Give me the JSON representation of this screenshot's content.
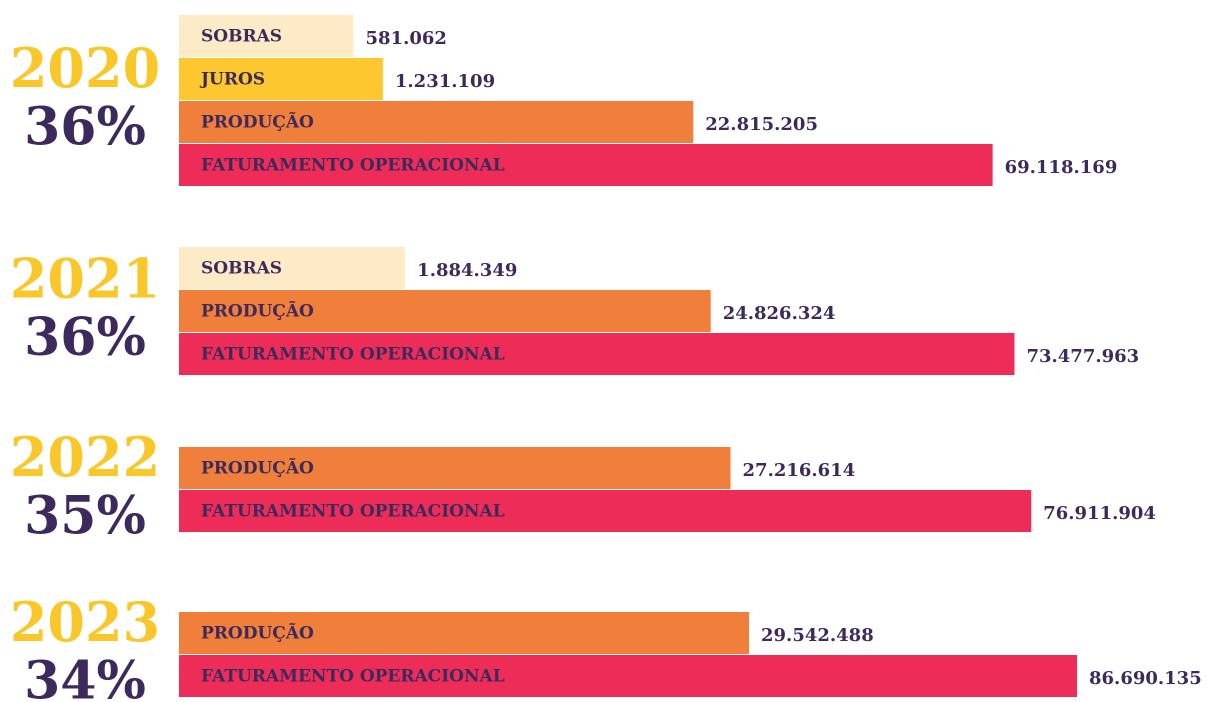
{
  "chart_data": {
    "type": "bar",
    "groups": [
      {
        "year": "2020",
        "share": "36%",
        "bars": [
          {
            "name": "SOBRAS",
            "value": 581062,
            "value_label": "581.062",
            "color": "#fdebc8"
          },
          {
            "name": "JUROS",
            "value": 1231109,
            "value_label": "1.231.109",
            "color": "#fdc82f"
          },
          {
            "name": "PRODUÇÃO",
            "value": 22815205,
            "value_label": "22.815.205",
            "color": "#f07f3c"
          },
          {
            "name": "FATURAMENTO OPERACIONAL",
            "value": 69118169,
            "value_label": "69.118.169",
            "color": "#ee2c58"
          }
        ]
      },
      {
        "year": "2021",
        "share": "36%",
        "bars": [
          {
            "name": "SOBRAS",
            "value": 1884349,
            "value_label": "1.884.349",
            "color": "#fdebc8"
          },
          {
            "name": "PRODUÇÃO",
            "value": 24826324,
            "value_label": "24.826.324",
            "color": "#f07f3c"
          },
          {
            "name": "FATURAMENTO OPERACIONAL",
            "value": 73477963,
            "value_label": "73.477.963",
            "color": "#ee2c58"
          }
        ]
      },
      {
        "year": "2022",
        "share": "35%",
        "bars": [
          {
            "name": "PRODUÇÃO",
            "value": 27216614,
            "value_label": "27.216.614",
            "color": "#f07f3c"
          },
          {
            "name": "FATURAMENTO OPERACIONAL",
            "value": 76911904,
            "value_label": "76.911.904",
            "color": "#ee2c58"
          }
        ]
      },
      {
        "year": "2023",
        "share": "34%",
        "bars": [
          {
            "name": "PRODUÇÃO",
            "value": 29542488,
            "value_label": "29.542.488",
            "color": "#f07f3c"
          },
          {
            "name": "FATURAMENTO OPERACIONAL",
            "value": 86690135,
            "value_label": "86.690.135",
            "color": "#ee2c58"
          }
        ]
      }
    ]
  }
}
